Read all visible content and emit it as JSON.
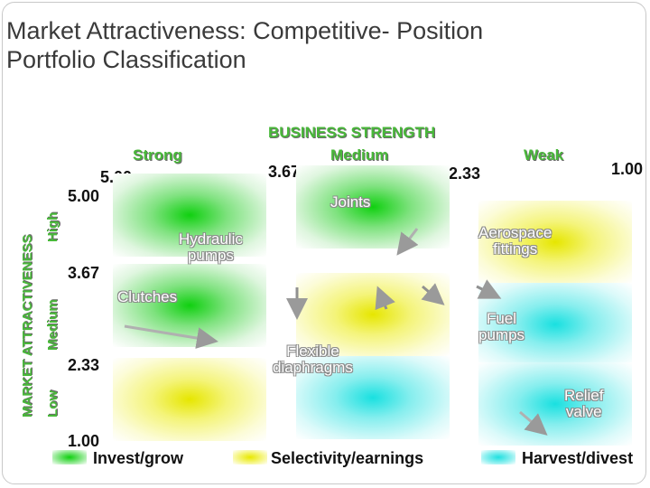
{
  "title": {
    "line1": "Market Attractiveness: Competitive- Position",
    "line2": "Portfolio Classification"
  },
  "axes": {
    "business_strength": "BUSINESS STRENGTH",
    "market_attractiveness": "MARKET ATTRACTIVENESS",
    "columns": [
      "Strong",
      "Medium",
      "Weak"
    ],
    "rows": [
      "High",
      "Medium",
      "Low"
    ],
    "x_ticks": [
      "5.00",
      "3.67",
      "2.33",
      "1.00"
    ],
    "y_ticks": [
      "5.00",
      "3.67",
      "2.33",
      "1.00"
    ]
  },
  "products": [
    {
      "name_lines": [
        "Joints"
      ]
    },
    {
      "name_lines": [
        "Hydraulic",
        "pumps"
      ]
    },
    {
      "name_lines": [
        "Aerospace",
        "fittings"
      ]
    },
    {
      "name_lines": [
        "Clutches"
      ]
    },
    {
      "name_lines": [
        "Fuel",
        "pumps"
      ]
    },
    {
      "name_lines": [
        "Flexible",
        "diaphragms"
      ]
    },
    {
      "name_lines": [
        "Relief",
        "valve"
      ]
    }
  ],
  "legend": [
    {
      "label": "Invest/grow",
      "color": "#18d018"
    },
    {
      "label": "Selectivity/earnings",
      "color": "#e8e800"
    },
    {
      "label": "Harvest/divest",
      "color": "#20e0e0"
    }
  ],
  "colors": {
    "invest": "#18d018",
    "selectivity": "#e8e800",
    "harvest": "#20e0e0",
    "axis_label": "#49b83a"
  }
}
